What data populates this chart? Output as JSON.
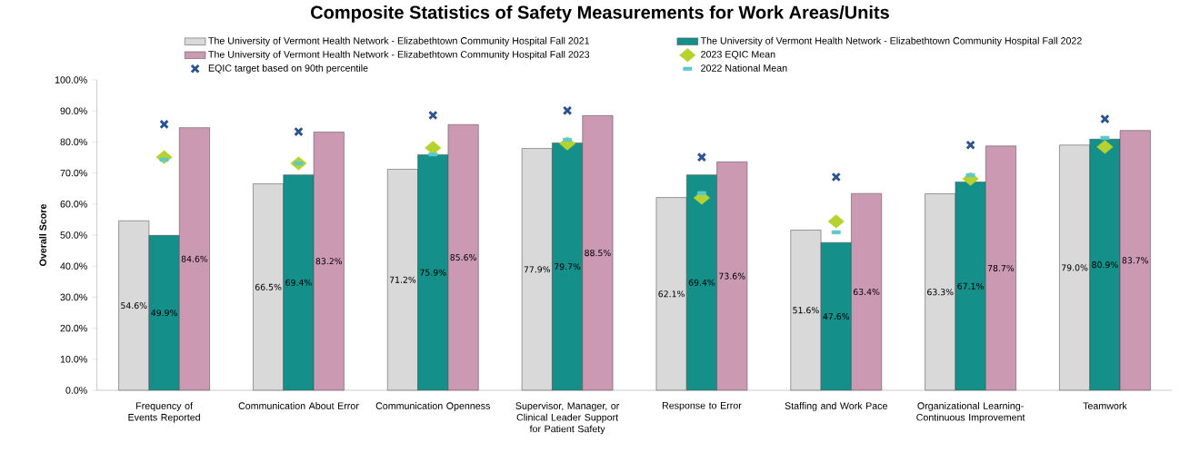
{
  "chart_data": {
    "type": "bar",
    "title": "Composite Statistics of Safety Measurements for Work Areas/Units",
    "ylabel": "Overall Score",
    "categories": [
      "Frequency of Events Reported",
      "Communication About Error",
      "Communication Openness",
      "Supervisor, Manager, or Clinical Leader Support for Patient Safety",
      "Response to Error",
      "Staffing and Work Pace",
      "Organizational Learning-Continuous Improvement",
      "Teamwork"
    ],
    "series": [
      {
        "name": "The University of Vermont Health Network - Elizabethtown Community Hospital Fall 2021",
        "color": "#d9d9d9",
        "values": [
          54.6,
          66.5,
          71.2,
          77.9,
          62.1,
          51.6,
          63.3,
          79.0
        ],
        "value_labels": [
          "54.6%",
          "66.5%",
          "71.2%",
          "77.9%",
          "62.1%",
          "51.6%",
          "63.3%",
          "79.0%"
        ]
      },
      {
        "name": "The University of Vermont Health Network - Elizabethtown Community Hospital Fall 2022",
        "color": "#148f8a",
        "values": [
          49.9,
          69.4,
          75.9,
          79.7,
          69.4,
          47.6,
          67.1,
          80.9
        ],
        "value_labels": [
          "49.9%",
          "69.4%",
          "75.9%",
          "79.7%",
          "69.4%",
          "47.6%",
          "67.1%",
          "80.9%"
        ]
      },
      {
        "name": "The University of Vermont Health Network - Elizabethtown Community Hospital Fall 2023",
        "color": "#cc99b3",
        "values": [
          84.6,
          83.2,
          85.6,
          88.5,
          73.6,
          63.4,
          78.7,
          83.7
        ],
        "value_labels": [
          "84.6%",
          "83.2%",
          "85.6%",
          "88.5%",
          "73.6%",
          "63.4%",
          "78.7%",
          "83.7%"
        ]
      },
      {
        "name": "2023 EQIC Mean",
        "type": "scatter",
        "marker": "diamond",
        "color": "#b5d22f",
        "values": [
          75.1,
          73.1,
          78.1,
          79.5,
          62.0,
          54.4,
          68.1,
          78.4
        ]
      },
      {
        "name": "EQIC target based on 90th percentile",
        "type": "scatter",
        "marker": "cross",
        "color": "#2a5390",
        "values": [
          85.7,
          83.3,
          88.6,
          90.1,
          75.1,
          68.7,
          79.0,
          87.4
        ]
      },
      {
        "name": "2022 National Mean",
        "type": "scatter",
        "marker": "square",
        "color": "#5bc8cc",
        "values": [
          74.3,
          73.1,
          76.0,
          80.7,
          63.5,
          50.9,
          69.3,
          81.3
        ]
      }
    ],
    "ylim": [
      0,
      100
    ],
    "yticks": [
      {
        "value": 0,
        "label": "0.0%"
      },
      {
        "value": 10,
        "label": "10.0%"
      },
      {
        "value": 20,
        "label": "20.0%"
      },
      {
        "value": 30,
        "label": "30.0%"
      },
      {
        "value": 40,
        "label": "40.0%"
      },
      {
        "value": 50,
        "label": "50.0%"
      },
      {
        "value": 60,
        "label": "60.0%"
      },
      {
        "value": 70,
        "label": "70.0%"
      },
      {
        "value": 80,
        "label": "80.0%"
      },
      {
        "value": 90,
        "label": "90.0%"
      },
      {
        "value": 100,
        "label": "100.0%"
      }
    ],
    "grid": false,
    "legend": "top"
  }
}
